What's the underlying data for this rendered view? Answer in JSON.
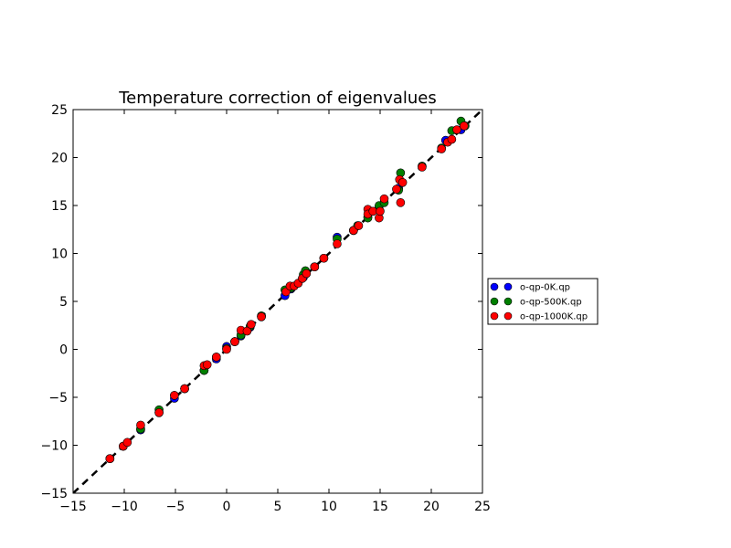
{
  "chart_data": {
    "type": "scatter",
    "title": "Temperature correction of eigenvalues",
    "xlabel": "",
    "ylabel": "",
    "xlim": [
      -15,
      25
    ],
    "ylim": [
      -15,
      25
    ],
    "xticks": [
      -15,
      -10,
      -5,
      0,
      5,
      10,
      15,
      20,
      25
    ],
    "yticks": [
      -15,
      -10,
      -5,
      0,
      5,
      10,
      15,
      20,
      25
    ],
    "xtick_labels": [
      "−15",
      "−10",
      "−5",
      "0",
      "5",
      "10",
      "15",
      "20",
      "25"
    ],
    "ytick_labels": [
      "−15",
      "−10",
      "−5",
      "0",
      "5",
      "10",
      "15",
      "20",
      "25"
    ],
    "grid": false,
    "legend_position": "outside-right",
    "reference_line": {
      "style": "dashed",
      "color": "#000000",
      "from": [
        -15,
        -15
      ],
      "to": [
        25,
        25
      ]
    },
    "series": [
      {
        "name": "o-qp-0K.qp",
        "color": "#0000ff",
        "points": [
          [
            -11.4,
            -11.4
          ],
          [
            -10.1,
            -10.1
          ],
          [
            -8.4,
            -8.4
          ],
          [
            -6.6,
            -6.6
          ],
          [
            -5.1,
            -5.1
          ],
          [
            -4.1,
            -4.1
          ],
          [
            -2.2,
            -2.2
          ],
          [
            -1.0,
            -1.0
          ],
          [
            0.0,
            0.3
          ],
          [
            0.8,
            0.8
          ],
          [
            1.4,
            1.4
          ],
          [
            2.3,
            2.3
          ],
          [
            3.4,
            3.4
          ],
          [
            5.7,
            5.6
          ],
          [
            6.3,
            6.3
          ],
          [
            7.5,
            7.5
          ],
          [
            8.6,
            8.6
          ],
          [
            9.5,
            9.5
          ],
          [
            10.8,
            11.7
          ],
          [
            12.4,
            12.4
          ],
          [
            13.8,
            13.8
          ],
          [
            14.9,
            14.9
          ],
          [
            16.8,
            16.8
          ],
          [
            19.1,
            19.1
          ],
          [
            21.4,
            21.8
          ],
          [
            22.9,
            22.9
          ]
        ]
      },
      {
        "name": "o-qp-500K.qp",
        "color": "#007f00",
        "points": [
          [
            -11.4,
            -11.4
          ],
          [
            -10.1,
            -10.1
          ],
          [
            -8.4,
            -8.3
          ],
          [
            -6.6,
            -6.3
          ],
          [
            -5.1,
            -4.8
          ],
          [
            -4.1,
            -4.1
          ],
          [
            -2.2,
            -2.2
          ],
          [
            -1.0,
            -0.8
          ],
          [
            0.0,
            0.1
          ],
          [
            0.8,
            0.8
          ],
          [
            1.4,
            1.5
          ],
          [
            2.3,
            2.4
          ],
          [
            3.4,
            3.5
          ],
          [
            5.7,
            6.2
          ],
          [
            6.3,
            6.4
          ],
          [
            7.5,
            7.8
          ],
          [
            7.7,
            8.2
          ],
          [
            8.6,
            8.6
          ],
          [
            9.5,
            9.5
          ],
          [
            10.8,
            11.5
          ],
          [
            12.4,
            12.4
          ],
          [
            12.8,
            12.9
          ],
          [
            13.8,
            13.7
          ],
          [
            14.9,
            15.0
          ],
          [
            15.4,
            15.3
          ],
          [
            16.8,
            16.6
          ],
          [
            17.0,
            18.4
          ],
          [
            19.1,
            19.1
          ],
          [
            21.0,
            21.0
          ],
          [
            22.0,
            22.8
          ],
          [
            22.9,
            23.8
          ],
          [
            23.3,
            23.3
          ]
        ]
      },
      {
        "name": "o-qp-1000K.qp",
        "color": "#ff0000",
        "points": [
          [
            -11.4,
            -11.4
          ],
          [
            -10.1,
            -10.1
          ],
          [
            -9.7,
            -9.7
          ],
          [
            -8.4,
            -7.9
          ],
          [
            -6.6,
            -6.6
          ],
          [
            -5.1,
            -4.8
          ],
          [
            -4.1,
            -4.1
          ],
          [
            -2.2,
            -1.7
          ],
          [
            -1.9,
            -1.6
          ],
          [
            -1.0,
            -0.8
          ],
          [
            0.0,
            0.0
          ],
          [
            0.8,
            0.8
          ],
          [
            1.4,
            2.0
          ],
          [
            2.0,
            1.9
          ],
          [
            2.4,
            2.6
          ],
          [
            3.4,
            3.4
          ],
          [
            5.8,
            6.0
          ],
          [
            6.2,
            6.6
          ],
          [
            6.6,
            6.6
          ],
          [
            7.0,
            6.9
          ],
          [
            7.4,
            7.4
          ],
          [
            7.8,
            7.9
          ],
          [
            8.6,
            8.6
          ],
          [
            9.5,
            9.5
          ],
          [
            10.8,
            11.0
          ],
          [
            12.4,
            12.4
          ],
          [
            12.9,
            12.9
          ],
          [
            13.8,
            14.6
          ],
          [
            13.8,
            14.1
          ],
          [
            14.3,
            14.4
          ],
          [
            14.9,
            13.7
          ],
          [
            15.0,
            14.4
          ],
          [
            15.4,
            15.7
          ],
          [
            16.6,
            16.7
          ],
          [
            16.9,
            17.7
          ],
          [
            17.0,
            15.3
          ],
          [
            17.2,
            17.4
          ],
          [
            19.1,
            19.0
          ],
          [
            21.0,
            20.9
          ],
          [
            21.6,
            21.6
          ],
          [
            22.0,
            21.9
          ],
          [
            22.5,
            22.9
          ],
          [
            23.2,
            23.3
          ]
        ]
      }
    ]
  }
}
